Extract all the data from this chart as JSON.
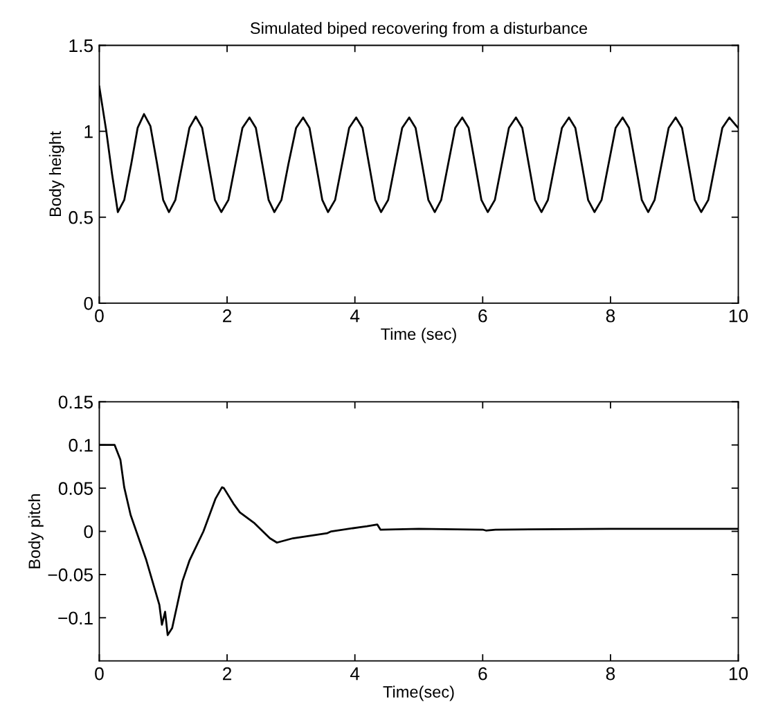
{
  "chart_data": [
    {
      "type": "line",
      "title": "Simulated biped recovering from a disturbance",
      "xlabel": "Time (sec)",
      "ylabel": "Body height",
      "xlim": [
        0,
        10
      ],
      "ylim": [
        0,
        1.5
      ],
      "xticks": [
        0,
        2,
        4,
        6,
        8,
        10
      ],
      "yticks": [
        0,
        0.5,
        1,
        1.5
      ],
      "grid": false,
      "legend": false,
      "series": [
        {
          "color": "#000000",
          "x": [
            0,
            0.11,
            0.2,
            0.29,
            0.39,
            0.5,
            0.6,
            0.7,
            0.8,
            0.9,
            1.0,
            1.09,
            1.19,
            1.3,
            1.41,
            1.51,
            1.61,
            1.71,
            1.81,
            1.91,
            2.02,
            2.13,
            2.24,
            2.35,
            2.45,
            2.55,
            2.65,
            2.74,
            2.85,
            2.96,
            3.08,
            3.19,
            3.29,
            3.39,
            3.49,
            3.58,
            3.69,
            3.8,
            3.91,
            4.02,
            4.12,
            4.22,
            4.32,
            4.41,
            4.52,
            4.63,
            4.74,
            4.85,
            4.95,
            5.05,
            5.15,
            5.25,
            5.35,
            5.46,
            5.57,
            5.68,
            5.78,
            5.88,
            5.98,
            6.08,
            6.19,
            6.3,
            6.41,
            6.52,
            6.62,
            6.72,
            6.82,
            6.92,
            7.02,
            7.13,
            7.24,
            7.35,
            7.45,
            7.55,
            7.65,
            7.75,
            7.86,
            7.97,
            8.08,
            8.19,
            8.29,
            8.39,
            8.49,
            8.59,
            8.69,
            8.8,
            8.91,
            9.02,
            9.12,
            9.22,
            9.32,
            9.42,
            9.53,
            9.64,
            9.75,
            9.86,
            9.95,
            10
          ],
          "values": [
            1.26,
            1.0,
            0.75,
            0.53,
            0.6,
            0.81,
            1.02,
            1.1,
            1.03,
            0.82,
            0.6,
            0.53,
            0.6,
            0.81,
            1.02,
            1.085,
            1.02,
            0.81,
            0.6,
            0.53,
            0.6,
            0.81,
            1.02,
            1.08,
            1.02,
            0.81,
            0.6,
            0.53,
            0.6,
            0.81,
            1.02,
            1.08,
            1.02,
            0.81,
            0.6,
            0.53,
            0.6,
            0.81,
            1.02,
            1.08,
            1.02,
            0.81,
            0.6,
            0.53,
            0.6,
            0.81,
            1.02,
            1.08,
            1.02,
            0.81,
            0.6,
            0.53,
            0.6,
            0.81,
            1.02,
            1.08,
            1.02,
            0.81,
            0.6,
            0.53,
            0.6,
            0.81,
            1.02,
            1.08,
            1.02,
            0.81,
            0.6,
            0.53,
            0.6,
            0.81,
            1.02,
            1.08,
            1.02,
            0.81,
            0.6,
            0.53,
            0.6,
            0.81,
            1.02,
            1.08,
            1.02,
            0.81,
            0.6,
            0.53,
            0.6,
            0.81,
            1.02,
            1.08,
            1.02,
            0.81,
            0.6,
            0.53,
            0.6,
            0.81,
            1.02,
            1.08,
            1.04,
            1.02
          ]
        }
      ]
    },
    {
      "type": "line",
      "xlabel": "Time(sec)",
      "ylabel": "Body pitch",
      "xlim": [
        0,
        10
      ],
      "ylim": [
        -0.15,
        0.15
      ],
      "xticks": [
        0,
        2,
        4,
        6,
        8,
        10
      ],
      "yticks": [
        -0.1,
        -0.05,
        0,
        0.05,
        0.1,
        0.15
      ],
      "grid": false,
      "legend": false,
      "series": [
        {
          "color": "#000000",
          "x": [
            0,
            0.24,
            0.33,
            0.39,
            0.49,
            0.73,
            0.94,
            0.98,
            1.03,
            1.07,
            1.14,
            1.3,
            1.41,
            1.63,
            1.82,
            1.92,
            1.95,
            2.1,
            2.2,
            2.42,
            2.67,
            2.78,
            3.03,
            3.57,
            3.63,
            4.19,
            4.35,
            4.4,
            5.0,
            6.0,
            6.05,
            6.2,
            8.0,
            10
          ],
          "values": [
            0.1,
            0.1,
            0.083,
            0.051,
            0.019,
            -0.032,
            -0.085,
            -0.108,
            -0.093,
            -0.12,
            -0.112,
            -0.058,
            -0.034,
            0.0,
            0.038,
            0.051,
            0.05,
            0.032,
            0.022,
            0.01,
            -0.008,
            -0.013,
            -0.008,
            -0.002,
            0.0,
            0.006,
            0.008,
            0.002,
            0.003,
            0.002,
            0.001,
            0.002,
            0.003,
            0.003
          ]
        }
      ]
    }
  ]
}
